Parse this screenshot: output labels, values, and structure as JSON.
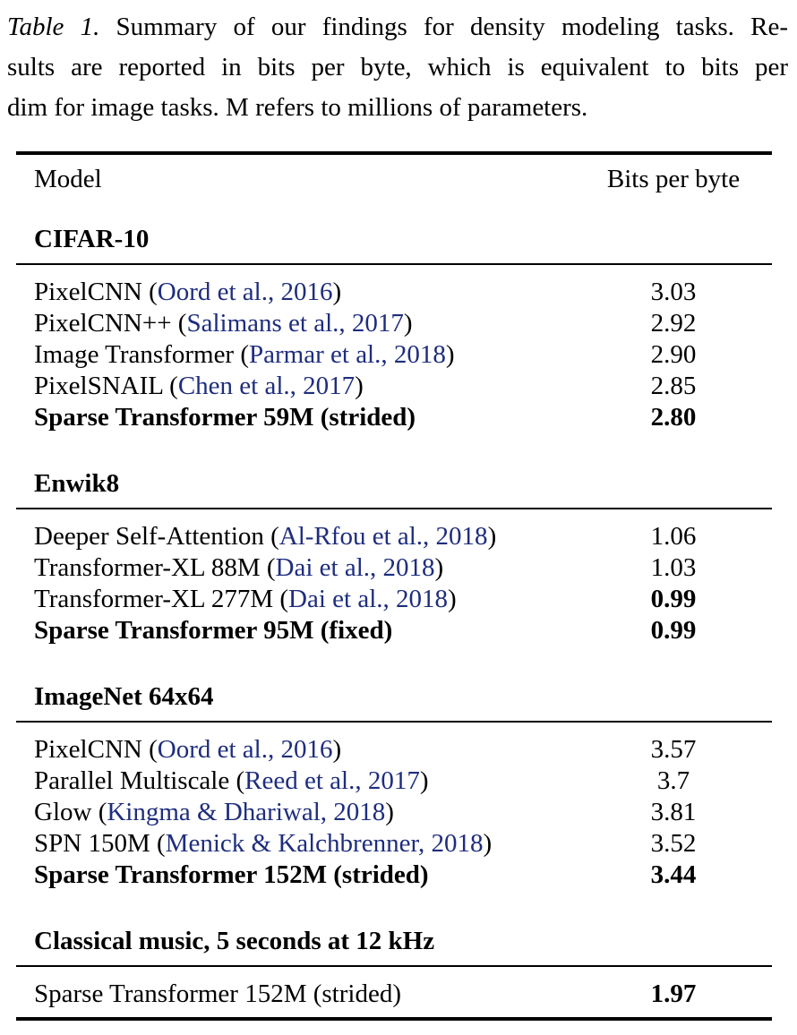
{
  "caption": {
    "label": "Table 1.",
    "line1_rest": "Summary of our findings for density modeling tasks. Re-",
    "line2": "sults are reported in bits per byte, which is equivalent to bits per",
    "line3": "dim for image tasks. M refers to millions of parameters."
  },
  "table": {
    "columns": {
      "model": "Model",
      "value": "Bits per byte"
    },
    "link_color": "#1e2d7d",
    "sections": [
      {
        "heading": "CIFAR-10",
        "rows": [
          {
            "pre": "PixelCNN (",
            "cite": "Oord et al., 2016",
            "post": ")",
            "value": "3.03",
            "bold_model": false,
            "bold_value": false
          },
          {
            "pre": "PixelCNN++ (",
            "cite": "Salimans et al., 2017",
            "post": ")",
            "value": "2.92",
            "bold_model": false,
            "bold_value": false
          },
          {
            "pre": "Image Transformer (",
            "cite": "Parmar et al., 2018",
            "post": ")",
            "value": "2.90",
            "bold_model": false,
            "bold_value": false
          },
          {
            "pre": "PixelSNAIL (",
            "cite": "Chen et al., 2017",
            "post": ")",
            "value": "2.85",
            "bold_model": false,
            "bold_value": false
          },
          {
            "pre": "Sparse Transformer 59M (strided)",
            "cite": "",
            "post": "",
            "value": "2.80",
            "bold_model": true,
            "bold_value": true
          }
        ]
      },
      {
        "heading": "Enwik8",
        "rows": [
          {
            "pre": "Deeper Self-Attention (",
            "cite": "Al-Rfou et al., 2018",
            "post": ")",
            "value": "1.06",
            "bold_model": false,
            "bold_value": false
          },
          {
            "pre": "Transformer-XL 88M (",
            "cite": "Dai et al., 2018",
            "post": ")",
            "value": "1.03",
            "bold_model": false,
            "bold_value": false
          },
          {
            "pre": "Transformer-XL 277M (",
            "cite": "Dai et al., 2018",
            "post": ")",
            "value": "0.99",
            "bold_model": false,
            "bold_value": true
          },
          {
            "pre": "Sparse Transformer 95M (fixed)",
            "cite": "",
            "post": "",
            "value": "0.99",
            "bold_model": true,
            "bold_value": true
          }
        ]
      },
      {
        "heading": "ImageNet 64x64",
        "rows": [
          {
            "pre": "PixelCNN (",
            "cite": "Oord et al., 2016",
            "post": ")",
            "value": "3.57",
            "bold_model": false,
            "bold_value": false
          },
          {
            "pre": "Parallel Multiscale (",
            "cite": "Reed et al., 2017",
            "post": ")",
            "value": "3.7",
            "bold_model": false,
            "bold_value": false
          },
          {
            "pre": "Glow (",
            "cite": "Kingma & Dhariwal, 2018",
            "post": ")",
            "value": "3.81",
            "bold_model": false,
            "bold_value": false
          },
          {
            "pre": "SPN 150M (",
            "cite": "Menick & Kalchbrenner, 2018",
            "post": ")",
            "value": "3.52",
            "bold_model": false,
            "bold_value": false
          },
          {
            "pre": "Sparse Transformer 152M (strided)",
            "cite": "",
            "post": "",
            "value": "3.44",
            "bold_model": true,
            "bold_value": true
          }
        ]
      },
      {
        "heading": "Classical music, 5 seconds at 12 kHz",
        "rows": [
          {
            "pre": "Sparse Transformer 152M (strided)",
            "cite": "",
            "post": "",
            "value": "1.97",
            "bold_model": false,
            "bold_value": true
          }
        ]
      }
    ]
  }
}
